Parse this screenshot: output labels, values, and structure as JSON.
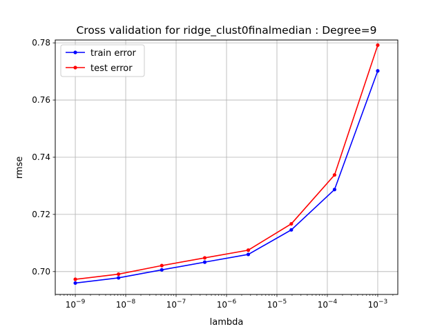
{
  "chart_data": {
    "type": "line",
    "title": "Cross validation for ridge_clust0finalmedian : Degree=9",
    "xlabel": "lambda",
    "ylabel": "rmse",
    "xscale": "log",
    "xlim": [
      4e-10,
      0.0025
    ],
    "ylim": [
      0.692,
      0.781
    ],
    "grid": true,
    "legend_position": "top-left",
    "x_ticks": [
      {
        "exp": -9,
        "label": "−9"
      },
      {
        "exp": -8,
        "label": "−8"
      },
      {
        "exp": -7,
        "label": "−7"
      },
      {
        "exp": -6,
        "label": "−6"
      },
      {
        "exp": -5,
        "label": "−5"
      },
      {
        "exp": -4,
        "label": "−4"
      },
      {
        "exp": -3,
        "label": "−3"
      }
    ],
    "x_tick_base": "10",
    "y_ticks": [
      {
        "value": 0.7,
        "label": "0.70"
      },
      {
        "value": 0.72,
        "label": "0.72"
      },
      {
        "value": 0.74,
        "label": "0.74"
      },
      {
        "value": 0.76,
        "label": "0.76"
      },
      {
        "value": 0.78,
        "label": "0.78"
      }
    ],
    "x": [
      1e-09,
      7.2e-09,
      5.2e-08,
      3.7e-07,
      2.7e-06,
      1.93e-05,
      0.000139,
      0.001
    ],
    "series": [
      {
        "name": "train error",
        "color": "#0000ff",
        "values": [
          0.696,
          0.6978,
          0.7006,
          0.7033,
          0.706,
          0.7146,
          0.7287,
          0.7702
        ]
      },
      {
        "name": "test error",
        "color": "#ff0000",
        "values": [
          0.6973,
          0.6991,
          0.7021,
          0.7048,
          0.7075,
          0.7167,
          0.7338,
          0.7792
        ]
      }
    ]
  }
}
